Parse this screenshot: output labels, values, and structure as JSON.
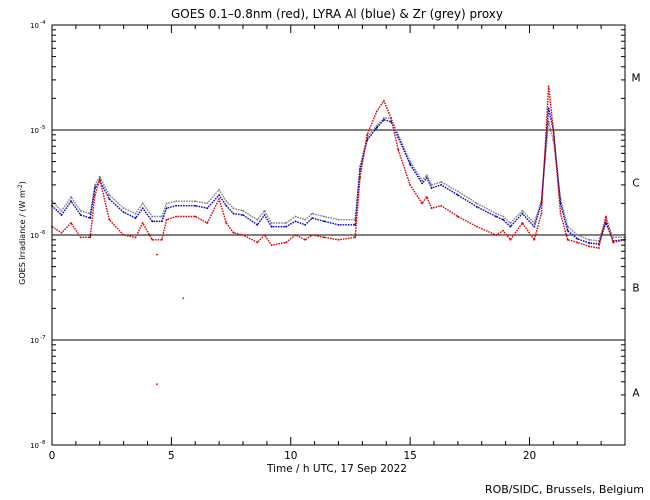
{
  "chart_data": {
    "type": "line",
    "title": "GOES 0.1–0.8nm (red), LYRA Al (blue) & Zr (grey) proxy",
    "xlabel": "Time / h UTC, 17 Sep 2022",
    "ylabel": "GOES Irradiance / (W m",
    "ylabel_sup": "-2",
    "ylabel_close": ")",
    "xlim": [
      0,
      24
    ],
    "ylim": [
      1e-08,
      0.0001
    ],
    "yscale": "log",
    "x_ticks": [
      {
        "value": 0,
        "label": "0"
      },
      {
        "value": 5,
        "label": "5"
      },
      {
        "value": 10,
        "label": "10"
      },
      {
        "value": 15,
        "label": "15"
      },
      {
        "value": 20,
        "label": "20"
      }
    ],
    "y_ticks": [
      {
        "exp": -4,
        "label": "10",
        "sup": "-4"
      },
      {
        "exp": -5,
        "label": "10",
        "sup": "-5"
      },
      {
        "exp": -6,
        "label": "10",
        "sup": "-6"
      },
      {
        "exp": -7,
        "label": "10",
        "sup": "-7"
      },
      {
        "exp": -8,
        "label": "10",
        "sup": "-8"
      }
    ],
    "flare_classes": [
      {
        "label": "M",
        "exp": -4.5
      },
      {
        "label": "C",
        "exp": -5.5
      },
      {
        "label": "B",
        "exp": -6.5
      },
      {
        "label": "A",
        "exp": -7.5
      }
    ],
    "reference_lines": [
      1e-05,
      1e-06,
      1e-07
    ],
    "series": [
      {
        "name": "Zr (grey) proxy",
        "color": "#808080",
        "x": [
          0,
          0.4,
          0.8,
          1.2,
          1.6,
          1.8,
          2.0,
          2.4,
          3.0,
          3.5,
          3.8,
          4.2,
          4.6,
          4.8,
          5.2,
          6.0,
          6.5,
          7.0,
          7.3,
          7.6,
          8.0,
          8.6,
          8.9,
          9.2,
          9.8,
          10.2,
          10.6,
          10.9,
          11.4,
          12.0,
          12.7,
          12.9,
          13.2,
          13.6,
          13.9,
          14.2,
          14.5,
          15.0,
          15.5,
          15.7,
          15.9,
          16.3,
          17.0,
          17.8,
          18.6,
          18.9,
          19.2,
          19.7,
          20.2,
          20.5,
          20.8,
          21.0,
          21.3,
          21.6,
          22.0,
          22.5,
          22.9,
          23.2,
          23.5,
          24.0
        ],
        "y": [
          2.1e-06,
          1.7e-06,
          2.3e-06,
          1.7e-06,
          1.6e-06,
          3e-06,
          3.6e-06,
          2.4e-06,
          1.8e-06,
          1.6e-06,
          2e-06,
          1.5e-06,
          1.5e-06,
          2e-06,
          2.1e-06,
          2.1e-06,
          2e-06,
          2.7e-06,
          2.1e-06,
          1.8e-06,
          1.7e-06,
          1.4e-06,
          1.7e-06,
          1.3e-06,
          1.3e-06,
          1.5e-06,
          1.4e-06,
          1.6e-06,
          1.5e-06,
          1.4e-06,
          1.4e-06,
          4.5e-06,
          8.5e-06,
          1.1e-05,
          1.3e-05,
          1.3e-05,
          9e-06,
          5e-06,
          3.3e-06,
          3.7e-06,
          3e-06,
          3.2e-06,
          2.6e-06,
          2e-06,
          1.6e-06,
          1.5e-06,
          1.3e-06,
          1.7e-06,
          1.3e-06,
          2.1e-06,
          1.2e-05,
          8e-06,
          2.2e-06,
          1.2e-06,
          1e-06,
          9e-07,
          8.8e-07,
          1.4e-06,
          9.5e-07,
          9.5e-07
        ]
      },
      {
        "name": "LYRA Al (blue)",
        "color": "#0000cc",
        "x": [
          0,
          0.4,
          0.8,
          1.2,
          1.6,
          1.8,
          2.0,
          2.4,
          3.0,
          3.5,
          3.8,
          4.2,
          4.6,
          4.8,
          5.2,
          6.0,
          6.5,
          7.0,
          7.3,
          7.6,
          8.0,
          8.6,
          8.9,
          9.2,
          9.8,
          10.2,
          10.6,
          10.9,
          11.4,
          12.0,
          12.7,
          12.9,
          13.2,
          13.6,
          13.9,
          14.2,
          14.5,
          15.0,
          15.5,
          15.7,
          15.9,
          16.3,
          17.0,
          17.8,
          18.6,
          18.9,
          19.2,
          19.7,
          20.2,
          20.5,
          20.8,
          21.0,
          21.3,
          21.6,
          22.0,
          22.5,
          22.9,
          23.2,
          23.5,
          24.0
        ],
        "y": [
          1.9e-06,
          1.55e-06,
          2.1e-06,
          1.55e-06,
          1.45e-06,
          2.8e-06,
          3.3e-06,
          2.2e-06,
          1.65e-06,
          1.45e-06,
          1.8e-06,
          1.35e-06,
          1.35e-06,
          1.8e-06,
          1.9e-06,
          1.9e-06,
          1.8e-06,
          2.4e-06,
          1.9e-06,
          1.6e-06,
          1.55e-06,
          1.25e-06,
          1.55e-06,
          1.2e-06,
          1.2e-06,
          1.35e-06,
          1.25e-06,
          1.45e-06,
          1.35e-06,
          1.25e-06,
          1.25e-06,
          4.2e-06,
          8e-06,
          1.05e-05,
          1.25e-05,
          1.2e-05,
          8.5e-06,
          4.7e-06,
          3.1e-06,
          3.5e-06,
          2.8e-06,
          3e-06,
          2.4e-06,
          1.85e-06,
          1.5e-06,
          1.4e-06,
          1.2e-06,
          1.6e-06,
          1.2e-06,
          2e-06,
          1.6e-05,
          1e-05,
          2e-06,
          1.1e-06,
          9.2e-07,
          8.4e-07,
          8.2e-07,
          1.3e-06,
          8.8e-07,
          9e-07
        ]
      },
      {
        "name": "GOES 0.1–0.8nm (red)",
        "color": "#dd0000",
        "x": [
          0,
          0.4,
          0.8,
          1.2,
          1.6,
          1.8,
          2.0,
          2.4,
          3.0,
          3.5,
          3.8,
          4.2,
          4.6,
          4.8,
          5.2,
          6.0,
          6.5,
          7.0,
          7.3,
          7.6,
          8.0,
          8.6,
          8.9,
          9.2,
          9.8,
          10.2,
          10.6,
          10.9,
          11.4,
          12.0,
          12.7,
          12.9,
          13.2,
          13.6,
          13.9,
          14.2,
          14.5,
          15.0,
          15.5,
          15.7,
          15.9,
          16.3,
          17.0,
          17.8,
          18.6,
          18.9,
          19.2,
          19.7,
          20.2,
          20.5,
          20.8,
          21.0,
          21.3,
          21.6,
          22.0,
          22.5,
          22.9,
          23.2,
          23.5,
          24.0
        ],
        "y": [
          1.2e-06,
          1.05e-06,
          1.3e-06,
          9.5e-07,
          9.5e-07,
          2.4e-06,
          3.4e-06,
          1.4e-06,
          1e-06,
          9.5e-07,
          1.3e-06,
          9e-07,
          9e-07,
          1.4e-06,
          1.5e-06,
          1.5e-06,
          1.3e-06,
          2.2e-06,
          1.3e-06,
          1.05e-06,
          1e-06,
          8.5e-07,
          1e-06,
          8e-07,
          8.5e-07,
          1e-06,
          9e-07,
          1e-06,
          9.5e-07,
          9e-07,
          9.5e-07,
          3.5e-06,
          9e-06,
          1.5e-05,
          1.9e-05,
          1.3e-05,
          6.5e-06,
          3e-06,
          2e-06,
          2.3e-06,
          1.8e-06,
          1.9e-06,
          1.5e-06,
          1.2e-06,
          1e-06,
          1.1e-06,
          9e-07,
          1.3e-06,
          9e-07,
          1.6e-06,
          2.6e-05,
          1e-05,
          1.6e-06,
          9e-07,
          8.5e-07,
          7.8e-07,
          7.5e-07,
          1.5e-06,
          8.5e-07,
          9e-07
        ]
      }
    ],
    "outlier_points": [
      {
        "series": "GOES 0.1–0.8nm (red)",
        "x": 4.4,
        "y": 6.5e-07
      },
      {
        "series": "GOES 0.1–0.8nm (red)",
        "x": 5.5,
        "y": 2.5e-07
      },
      {
        "series": "GOES 0.1–0.8nm (red)",
        "x": 4.4,
        "y": 3.8e-08
      }
    ]
  },
  "credit": "ROB/SIDC, Brussels, Belgium"
}
